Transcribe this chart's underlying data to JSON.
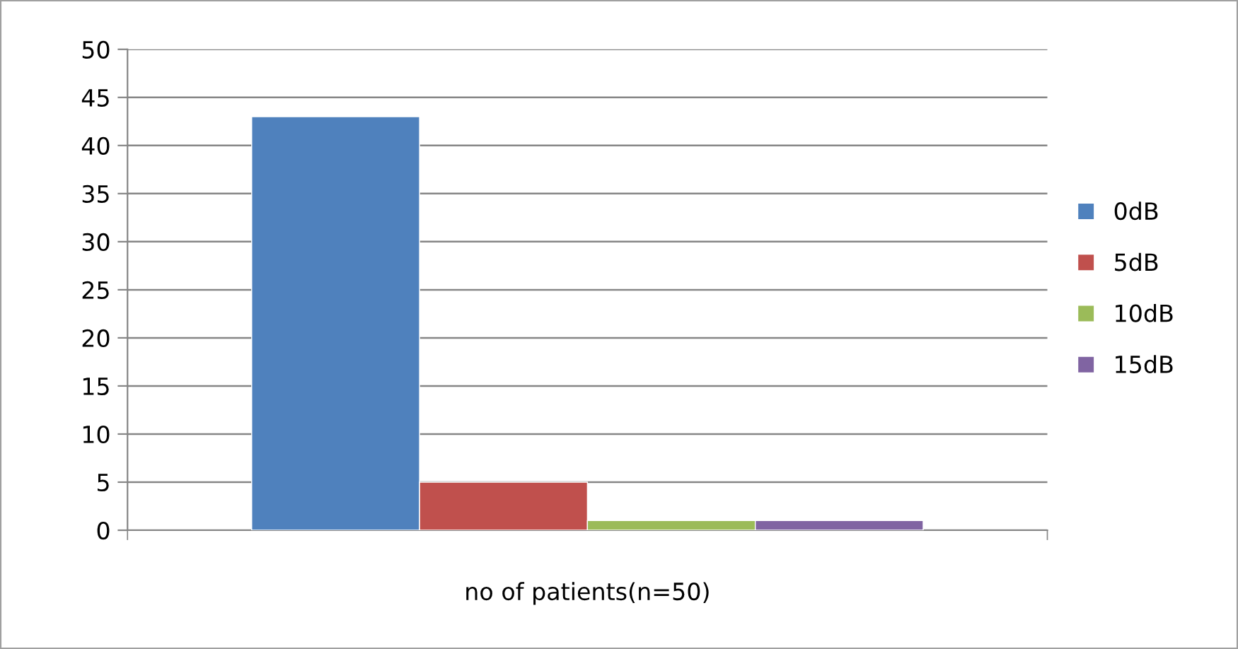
{
  "chart_data": {
    "type": "bar",
    "xlabel": "no of patients(n=50)",
    "categories": [
      null
    ],
    "series": [
      {
        "name": "0dB",
        "color": "#4f81bd",
        "values": [
          43
        ]
      },
      {
        "name": "5dB",
        "color": "#c0504d",
        "values": [
          5
        ]
      },
      {
        "name": "10dB",
        "color": "#9bbb59",
        "values": [
          1
        ]
      },
      {
        "name": "15dB",
        "color": "#8064a2",
        "values": [
          1
        ]
      }
    ],
    "ylim": [
      0,
      50
    ],
    "yticks": [
      0,
      5,
      10,
      15,
      20,
      25,
      30,
      35,
      40,
      45,
      50
    ],
    "grid": "y",
    "legend": "right"
  }
}
